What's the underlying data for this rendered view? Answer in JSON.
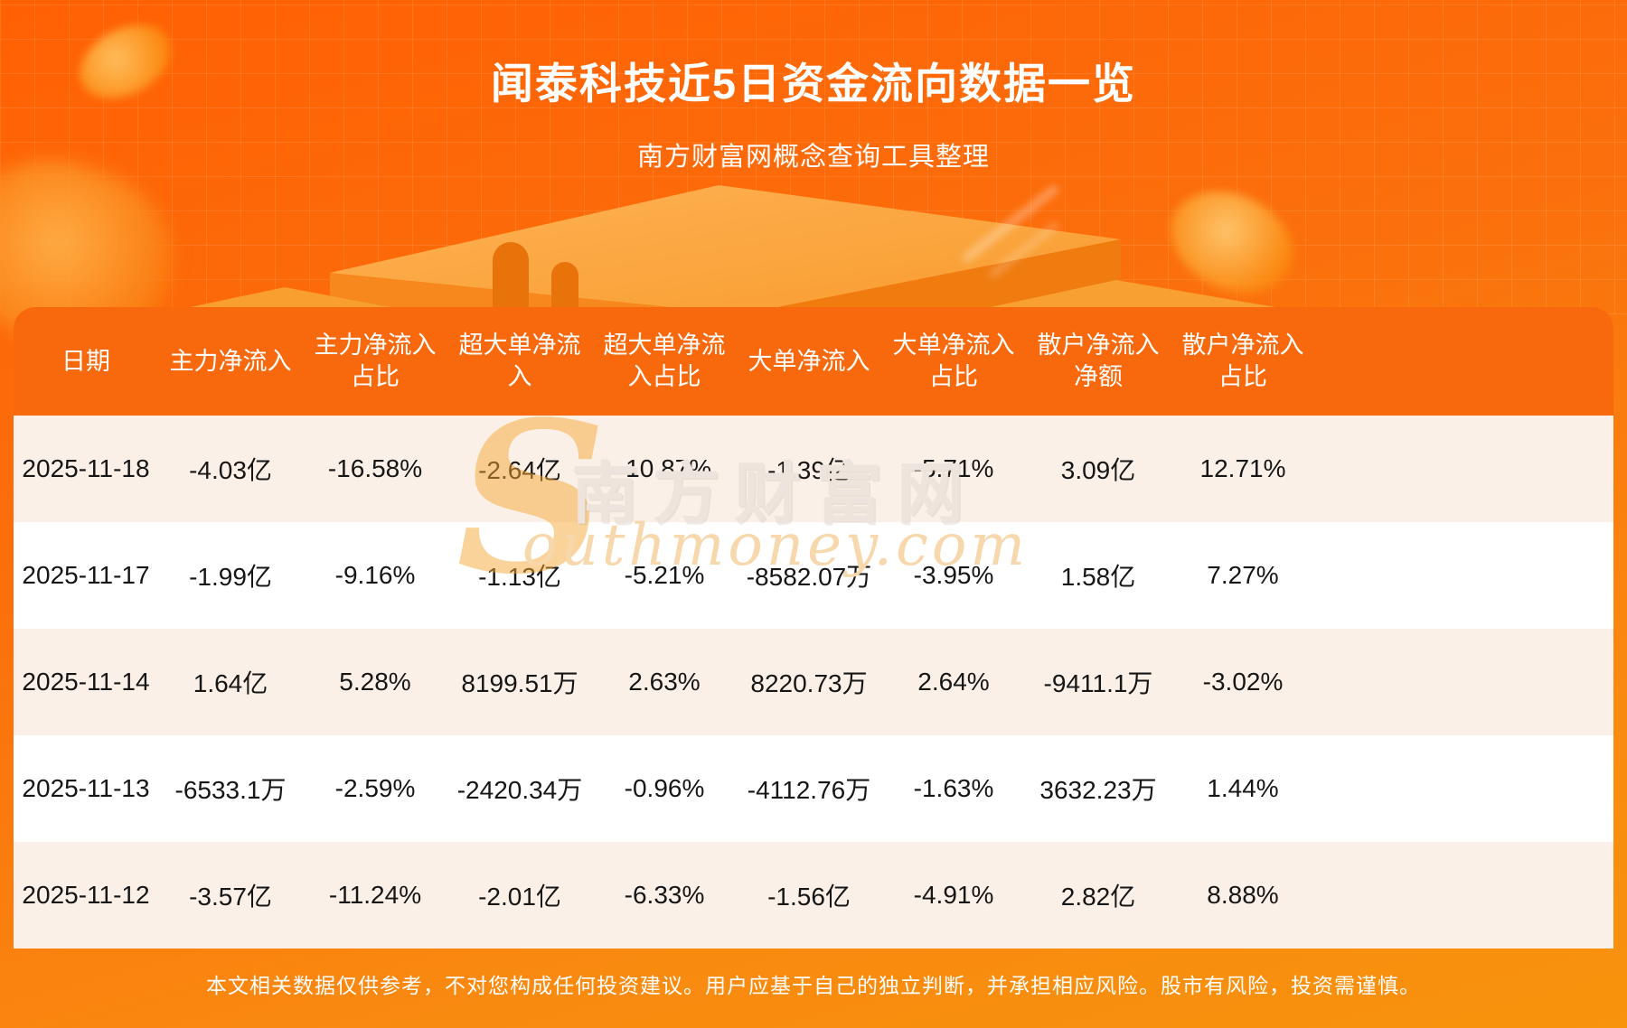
{
  "header": {
    "title": "闻泰科技近5日资金流向数据一览",
    "subtitle": "南方财富网概念查询工具整理"
  },
  "watermark": {
    "s": "S",
    "cn": "南方财富网",
    "en": "outhmoney.com"
  },
  "footer": {
    "disclaimer": "本文相关数据仅供参考，不对您构成任何投资建议。用户应基于自己的独立判断，并承担相应风险。股市有风险，投资需谨慎。"
  },
  "colors": {
    "background_top": "#FF6003",
    "background_bottom": "#F8930C",
    "header_row": "#F8690D",
    "row_cream": "#FAF0E7",
    "row_white": "#FFFFFF",
    "cell_text": "#161616",
    "white_text": "#FFFFFF"
  },
  "chart_data": {
    "type": "table",
    "title": "闻泰科技近5日资金流向数据一览",
    "source_note": "南方财富网概念查询工具整理",
    "columns": [
      "日期",
      "主力净流入",
      "主力净流入占比",
      "超大单净流入",
      "超大单净流入占比",
      "大单净流入",
      "大单净流入占比",
      "散户净流入净额",
      "散户净流入占比"
    ],
    "rows": [
      [
        "2025-11-18",
        "-4.03亿",
        "-16.58%",
        "-2.64亿",
        "-10.87%",
        "-1.39亿",
        "-5.71%",
        "3.09亿",
        "12.71%"
      ],
      [
        "2025-11-17",
        "-1.99亿",
        "-9.16%",
        "-1.13亿",
        "-5.21%",
        "-8582.07万",
        "-3.95%",
        "1.58亿",
        "7.27%"
      ],
      [
        "2025-11-14",
        "1.64亿",
        "5.28%",
        "8199.51万",
        "2.63%",
        "8220.73万",
        "2.64%",
        "-9411.1万",
        "-3.02%"
      ],
      [
        "2025-11-13",
        "-6533.1万",
        "-2.59%",
        "-2420.34万",
        "-0.96%",
        "-4112.76万",
        "-1.63%",
        "3632.23万",
        "1.44%"
      ],
      [
        "2025-11-12",
        "-3.57亿",
        "-11.24%",
        "-2.01亿",
        "-6.33%",
        "-1.56亿",
        "-4.91%",
        "2.82亿",
        "8.88%"
      ]
    ]
  }
}
